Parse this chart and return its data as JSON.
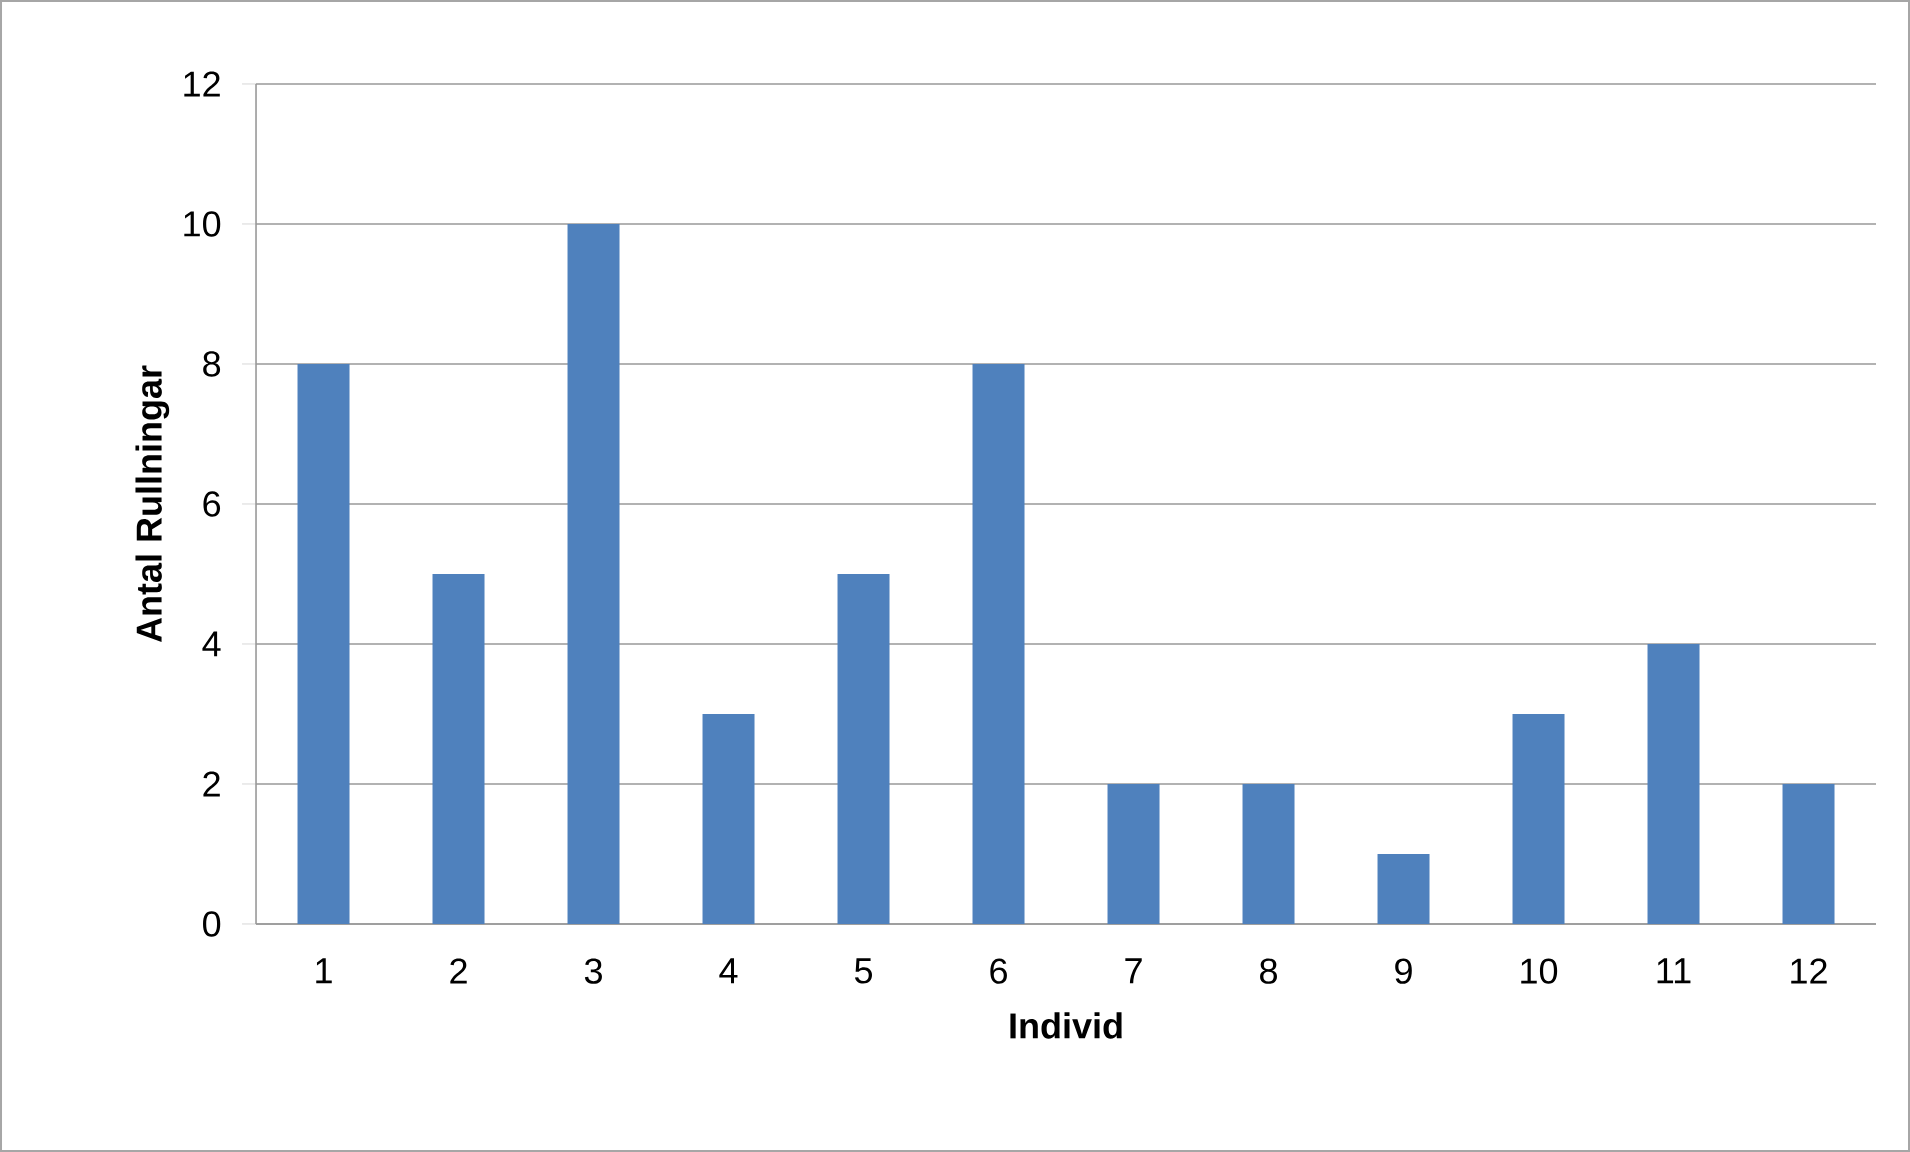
{
  "chart_data": {
    "type": "bar",
    "xlabel": "Individ",
    "ylabel": "Antal Rullningar",
    "categories": [
      "1",
      "2",
      "3",
      "4",
      "5",
      "6",
      "7",
      "8",
      "9",
      "10",
      "11",
      "12"
    ],
    "values": [
      8,
      5,
      10,
      3,
      5,
      8,
      2,
      2,
      1,
      3,
      4,
      2
    ],
    "color": "#4f81bd",
    "ylim": [
      0,
      12
    ],
    "yticks": [
      0,
      2,
      4,
      6,
      8,
      10,
      12
    ],
    "grid": "y"
  }
}
